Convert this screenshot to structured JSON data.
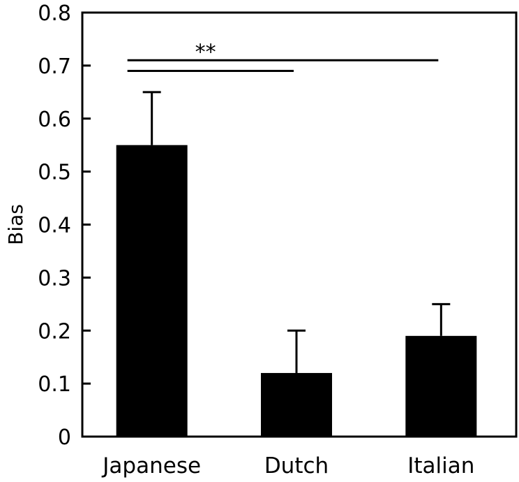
{
  "chart_data": {
    "type": "bar",
    "title": "",
    "xlabel": "",
    "ylabel": "Bias",
    "ylim": [
      0,
      0.8
    ],
    "yticks": [
      "0",
      "0.1",
      "0.2",
      "0.3",
      "0.4",
      "0.5",
      "0.6",
      "0.7",
      "0.8"
    ],
    "categories": [
      "Japanese",
      "Dutch",
      "Italian"
    ],
    "values": [
      0.55,
      0.12,
      0.19
    ],
    "error_upper": [
      0.65,
      0.2,
      0.25
    ],
    "grid": false,
    "bar_color": "#000000",
    "significance": {
      "label": "**",
      "brackets": [
        {
          "from": "Japanese",
          "to": "Dutch",
          "y": 0.69
        },
        {
          "from": "Japanese",
          "to": "Italian",
          "y": 0.71
        }
      ]
    }
  }
}
